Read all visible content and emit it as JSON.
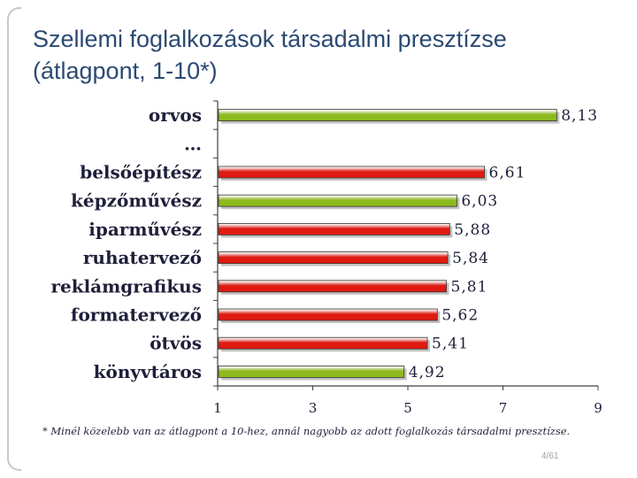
{
  "slide": {
    "title_line1": "Szellemi foglalkozások társadalmi presztízse",
    "title_line2": "(átlagpont, 1-10*)",
    "footnote": "* Minél közelebb van az átlagpont a 10-hez, annál nagyobb az adott foglalkozás társadalmi presztízse.",
    "page_number": "4/61"
  },
  "colors": {
    "green": "#8dba1c",
    "red": "#e01a10",
    "title": "#2b4a73"
  },
  "chart_data": {
    "type": "bar",
    "orientation": "horizontal",
    "categories": [
      "orvos",
      "…",
      "belsőépítész",
      "képzőművész",
      "iparművész",
      "ruhatervező",
      "reklámgrafikus",
      "formatervező",
      "ötvös",
      "könyvtáros"
    ],
    "values": [
      8.13,
      null,
      6.61,
      6.03,
      5.88,
      5.84,
      5.81,
      5.62,
      5.41,
      4.92
    ],
    "value_labels": [
      "8,13",
      "",
      "6,61",
      "6,03",
      "5,88",
      "5,84",
      "5,81",
      "5,62",
      "5,41",
      "4,92"
    ],
    "bar_colors": [
      "green",
      null,
      "red",
      "green",
      "red",
      "red",
      "red",
      "red",
      "red",
      "green"
    ],
    "xlim": [
      1,
      9
    ],
    "x_ticks": [
      "1",
      "3",
      "5",
      "7",
      "9"
    ],
    "xlabel": "",
    "ylabel": "",
    "grid": false
  }
}
